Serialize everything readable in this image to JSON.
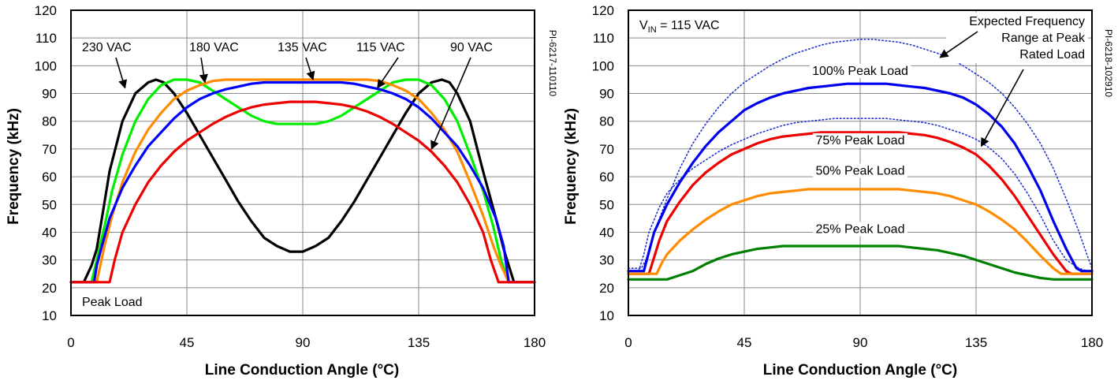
{
  "chart_data": [
    {
      "type": "line",
      "id": "PI-6217-110110",
      "xlabel": "Line Conduction Angle (°C)",
      "ylabel": "Frequency (kHz)",
      "xlim": [
        0,
        180
      ],
      "ylim": [
        10,
        120
      ],
      "xticks": [
        "0",
        "45",
        "90",
        "135",
        "180"
      ],
      "yticks": [
        "10",
        "20",
        "30",
        "40",
        "50",
        "60",
        "70",
        "80",
        "90",
        "100",
        "110",
        "120"
      ],
      "grid": true,
      "corner_label": "Peak Load",
      "series": [
        {
          "name": "230 VAC",
          "color": "#000000",
          "style": "solid",
          "x": [
            0,
            5,
            8,
            10,
            12,
            15,
            20,
            25,
            30,
            33,
            36,
            40,
            45,
            50,
            55,
            60,
            65,
            70,
            75,
            80,
            85,
            90,
            95,
            100,
            105,
            110,
            115,
            120,
            125,
            130,
            135,
            140,
            144,
            147,
            150,
            155,
            160,
            165,
            168,
            170,
            172,
            175,
            180
          ],
          "y": [
            22,
            22,
            28,
            34,
            45,
            62,
            80,
            90,
            94,
            95,
            94,
            90,
            83,
            75,
            67,
            59,
            51,
            44,
            38,
            35,
            33,
            33,
            35,
            38,
            44,
            51,
            59,
            67,
            75,
            83,
            90,
            94,
            95,
            94,
            90,
            80,
            62,
            45,
            34,
            28,
            22,
            22,
            22
          ]
        },
        {
          "name": "180 VAC",
          "color": "#00ee00",
          "style": "solid",
          "x": [
            0,
            8,
            10,
            13,
            16,
            20,
            25,
            30,
            35,
            40,
            45,
            50,
            55,
            60,
            65,
            70,
            75,
            80,
            85,
            90,
            95,
            100,
            105,
            110,
            115,
            120,
            125,
            130,
            135,
            140,
            145,
            150,
            155,
            160,
            164,
            167,
            170,
            172,
            180
          ],
          "y": [
            22,
            22,
            30,
            42,
            55,
            68,
            80,
            88,
            93,
            95,
            95,
            94,
            91,
            88,
            85,
            82,
            80,
            79,
            79,
            79,
            79,
            80,
            82,
            85,
            88,
            91,
            94,
            95,
            95,
            93,
            88,
            80,
            68,
            55,
            42,
            30,
            22,
            22,
            22
          ]
        },
        {
          "name": "135 VAC",
          "color": "#ff8c00",
          "style": "solid",
          "x": [
            0,
            10,
            13,
            16,
            20,
            25,
            30,
            35,
            40,
            45,
            50,
            55,
            60,
            65,
            70,
            75,
            80,
            85,
            90,
            95,
            100,
            105,
            110,
            115,
            120,
            125,
            130,
            135,
            140,
            145,
            150,
            155,
            160,
            164,
            167,
            170,
            172,
            175,
            180
          ],
          "y": [
            22,
            22,
            35,
            46,
            58,
            69,
            77,
            83,
            88,
            91,
            93,
            94.5,
            95,
            95,
            95,
            95,
            95,
            95,
            95,
            95,
            95,
            95,
            95,
            95,
            94.5,
            93,
            91,
            88,
            83,
            77,
            69,
            58,
            46,
            35,
            28,
            22,
            22,
            22,
            22
          ]
        },
        {
          "name": "115 VAC",
          "color": "#0000ff",
          "style": "solid",
          "x": [
            0,
            9,
            10,
            12,
            15,
            20,
            25,
            30,
            35,
            40,
            45,
            50,
            55,
            60,
            65,
            70,
            75,
            80,
            85,
            90,
            95,
            100,
            105,
            110,
            115,
            120,
            125,
            130,
            135,
            140,
            145,
            150,
            155,
            160,
            165,
            168,
            170,
            180
          ],
          "y": [
            22,
            22,
            28,
            35,
            45,
            56,
            64,
            71,
            76,
            81,
            85,
            88,
            90,
            91.5,
            92.5,
            93.5,
            94,
            94,
            94,
            94,
            94,
            94,
            94,
            93.5,
            92.5,
            91.5,
            90,
            88,
            85,
            81,
            76,
            71,
            64,
            56,
            45,
            35,
            22,
            22
          ]
        },
        {
          "name": "90 VAC",
          "color": "#ee0000",
          "style": "solid",
          "x": [
            0,
            15,
            17,
            20,
            25,
            30,
            35,
            40,
            45,
            50,
            55,
            60,
            65,
            70,
            75,
            80,
            85,
            90,
            95,
            100,
            105,
            110,
            115,
            120,
            125,
            130,
            135,
            140,
            145,
            150,
            155,
            160,
            163,
            166,
            168,
            170,
            180
          ],
          "y": [
            22,
            22,
            30,
            40,
            50,
            58,
            64,
            69,
            73,
            76,
            79,
            81.5,
            83.5,
            85,
            86,
            86.5,
            87,
            87,
            87,
            86.5,
            86,
            85,
            83.5,
            81.5,
            79,
            76,
            73,
            69,
            64,
            58,
            50,
            40,
            30,
            22,
            22,
            22,
            22
          ]
        }
      ],
      "annotations": [
        {
          "text": "230 VAC",
          "target": [
            21,
            92
          ]
        },
        {
          "text": "180 VAC",
          "target": [
            52,
            94
          ]
        },
        {
          "text": "135 VAC",
          "target": [
            94,
            95
          ]
        },
        {
          "text": "115 VAC",
          "target": [
            119,
            92
          ]
        },
        {
          "text": "90 VAC",
          "target": [
            140,
            70
          ]
        }
      ]
    },
    {
      "type": "line",
      "id": "PI-6218-102910",
      "xlabel": "Line Conduction Angle (°C)",
      "ylabel": "Frequency (kHz)",
      "xlim": [
        0,
        180
      ],
      "ylim": [
        10,
        120
      ],
      "xticks": [
        "0",
        "45",
        "90",
        "135",
        "180"
      ],
      "yticks": [
        "10",
        "20",
        "30",
        "40",
        "50",
        "60",
        "70",
        "80",
        "90",
        "100",
        "110",
        "120"
      ],
      "grid": true,
      "condition_label": {
        "prefix": "V",
        "subscript": "IN",
        "suffix": " = 115 VAC"
      },
      "range_label": [
        "Expected Frequency",
        "Range at Peak",
        "Rated Load"
      ],
      "series": [
        {
          "name": "Expected Frequency Range at Peak Rated Load (upper)",
          "color": "#2233cc",
          "style": "dotted",
          "x": [
            0,
            5,
            8,
            10,
            15,
            20,
            25,
            30,
            35,
            40,
            45,
            50,
            55,
            60,
            65,
            70,
            75,
            80,
            85,
            90,
            95,
            100,
            105,
            110,
            115,
            120,
            125,
            130,
            135,
            140,
            145,
            150,
            155,
            160,
            165,
            170,
            175,
            178,
            180
          ],
          "y": [
            27,
            27,
            32,
            40,
            52,
            63,
            72,
            79,
            85,
            90,
            94,
            97,
            100,
            102.5,
            104.5,
            106,
            107.5,
            108.5,
            109,
            109.5,
            109.5,
            109,
            108.5,
            107.5,
            106,
            104.5,
            102.5,
            100,
            97,
            94,
            90,
            85,
            79,
            72,
            63,
            52,
            40,
            32,
            27
          ]
        },
        {
          "name": "Expected Frequency Range at Peak Rated Load (lower)",
          "color": "#2233cc",
          "style": "dotted",
          "x": [
            0,
            4,
            6,
            8,
            12,
            15,
            20,
            25,
            30,
            35,
            40,
            45,
            50,
            55,
            60,
            65,
            70,
            75,
            80,
            85,
            90,
            95,
            100,
            105,
            110,
            115,
            120,
            125,
            130,
            135,
            140,
            145,
            150,
            155,
            160,
            165,
            170,
            175,
            178,
            180
          ],
          "y": [
            26,
            26,
            32,
            40,
            49,
            54,
            59,
            63,
            66,
            69,
            71.5,
            73.5,
            75.5,
            77,
            78.5,
            79.5,
            80,
            80.5,
            81,
            81,
            81,
            81,
            81,
            80.5,
            80,
            79.5,
            78.5,
            77,
            75.5,
            73.5,
            70.5,
            66.5,
            61,
            54,
            46,
            37,
            30,
            27,
            26,
            26
          ]
        },
        {
          "name": "100% Peak Load",
          "color": "#0000ee",
          "style": "solid",
          "x": [
            0,
            6,
            8,
            10,
            15,
            20,
            25,
            30,
            35,
            40,
            45,
            50,
            55,
            60,
            65,
            70,
            75,
            80,
            85,
            90,
            95,
            100,
            105,
            110,
            115,
            120,
            125,
            130,
            135,
            140,
            145,
            150,
            155,
            160,
            165,
            170,
            174,
            176,
            180
          ],
          "y": [
            26,
            26,
            33,
            40,
            50,
            58,
            65,
            71,
            76,
            80,
            84,
            86.5,
            88.5,
            90,
            91,
            92,
            92.5,
            93,
            93.5,
            93.5,
            93.5,
            93.5,
            93,
            92.5,
            92,
            91,
            90,
            88.5,
            86,
            82.5,
            78,
            72,
            64,
            55,
            44,
            34,
            27,
            26,
            26
          ]
        },
        {
          "name": "75% Peak Load",
          "color": "#ee0000",
          "style": "solid",
          "x": [
            0,
            8,
            10,
            12,
            15,
            20,
            25,
            30,
            35,
            40,
            45,
            50,
            55,
            60,
            65,
            70,
            75,
            80,
            85,
            90,
            95,
            100,
            105,
            110,
            115,
            120,
            125,
            130,
            135,
            140,
            145,
            150,
            155,
            160,
            165,
            170,
            172,
            174,
            180
          ],
          "y": [
            25,
            25,
            31,
            37,
            44,
            51,
            57,
            61.5,
            65,
            68,
            70,
            72,
            73.5,
            74.5,
            75,
            75.5,
            76,
            76,
            76,
            76,
            76,
            76,
            76,
            75.5,
            75,
            74,
            72.5,
            70.5,
            68,
            64,
            59,
            53,
            46,
            39,
            32,
            26,
            25,
            25,
            25
          ]
        },
        {
          "name": "50% Peak Load",
          "color": "#ff8c00",
          "style": "solid",
          "x": [
            0,
            11,
            13,
            15,
            20,
            25,
            30,
            35,
            40,
            45,
            50,
            55,
            60,
            65,
            70,
            75,
            80,
            85,
            90,
            95,
            100,
            105,
            110,
            115,
            120,
            125,
            130,
            135,
            140,
            145,
            150,
            155,
            160,
            165,
            168,
            180
          ],
          "y": [
            25,
            25,
            29,
            32,
            37,
            41,
            44.5,
            47.5,
            50,
            51.5,
            53,
            54,
            54.5,
            55,
            55.5,
            55.5,
            55.5,
            55.5,
            55.5,
            55.5,
            55.5,
            55.5,
            55,
            54.5,
            54,
            53,
            51.5,
            50,
            47.5,
            44.5,
            41,
            36.5,
            31.5,
            27,
            25,
            25
          ]
        },
        {
          "name": "25% Peak Load",
          "color": "#008000",
          "style": "solid",
          "x": [
            0,
            15,
            20,
            25,
            30,
            35,
            40,
            45,
            50,
            55,
            60,
            65,
            70,
            75,
            80,
            85,
            90,
            95,
            100,
            105,
            110,
            115,
            120,
            125,
            130,
            135,
            140,
            145,
            150,
            155,
            160,
            165,
            180
          ],
          "y": [
            23,
            23,
            24.5,
            26,
            28.5,
            30.5,
            32,
            33,
            34,
            34.5,
            35,
            35,
            35,
            35,
            35,
            35,
            35,
            35,
            35,
            35,
            34.5,
            34,
            33.5,
            32.5,
            31.5,
            30,
            28.5,
            27,
            25.5,
            24.5,
            23.5,
            23,
            23
          ]
        }
      ],
      "curve_labels": [
        {
          "text": "100% Peak Load",
          "at": [
            90,
            97
          ]
        },
        {
          "text": "75% Peak Load",
          "at": [
            90,
            72
          ]
        },
        {
          "text": "50% Peak Load",
          "at": [
            90,
            61
          ]
        },
        {
          "text": "25% Peak Load",
          "at": [
            90,
            40
          ]
        }
      ],
      "range_arrows": [
        [
          121,
          103
        ],
        [
          137,
          71
        ]
      ]
    }
  ]
}
